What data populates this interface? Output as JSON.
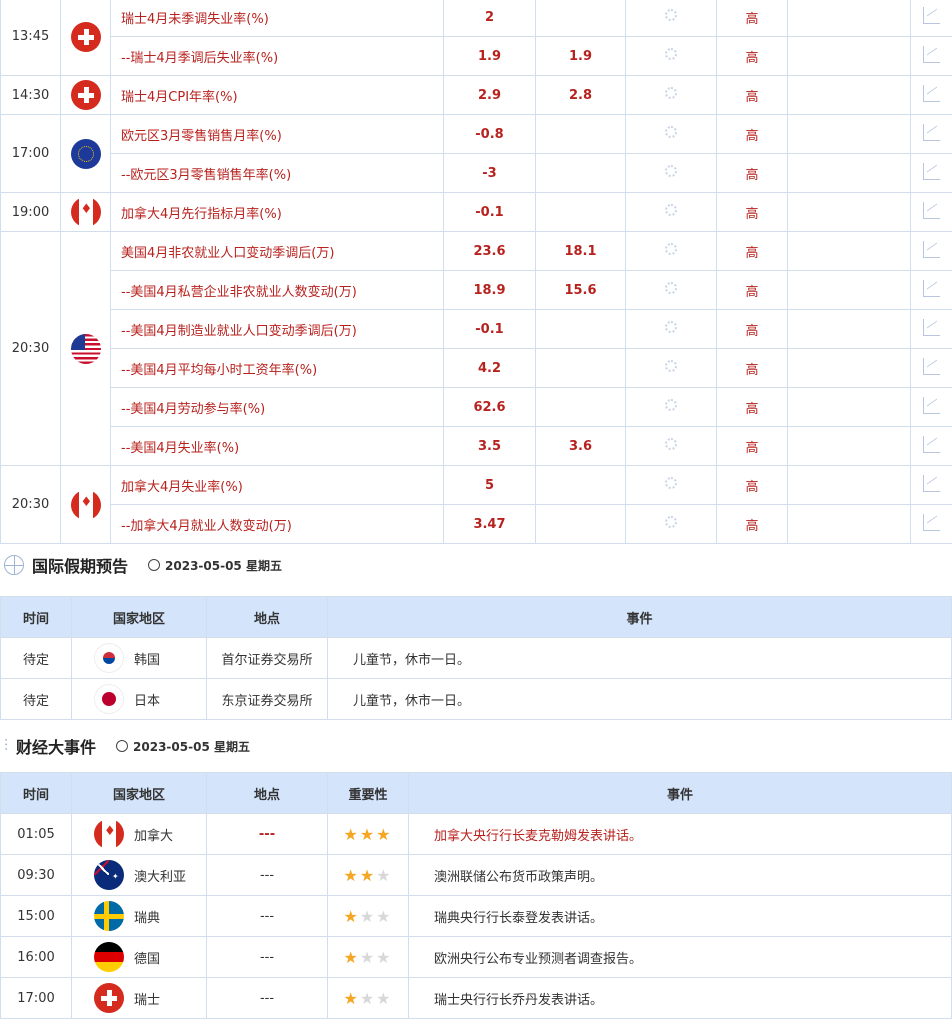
{
  "econ_groups": [
    {
      "time": "13:45",
      "flag": "switzerland",
      "items": [
        {
          "name": "瑞士4月未季调失业率(%)",
          "actual": "2",
          "forecast": "",
          "importance": "高"
        },
        {
          "name": "--瑞士4月季调后失业率(%)",
          "actual": "1.9",
          "forecast": "1.9",
          "importance": "高"
        }
      ]
    },
    {
      "time": "14:30",
      "flag": "switzerland",
      "items": [
        {
          "name": "瑞士4月CPI年率(%)",
          "actual": "2.9",
          "forecast": "2.8",
          "importance": "高"
        }
      ]
    },
    {
      "time": "17:00",
      "flag": "eu",
      "items": [
        {
          "name": "欧元区3月零售销售月率(%)",
          "actual": "-0.8",
          "forecast": "",
          "importance": "高"
        },
        {
          "name": "--欧元区3月零售销售年率(%)",
          "actual": "-3",
          "forecast": "",
          "importance": "高"
        }
      ]
    },
    {
      "time": "19:00",
      "flag": "canada",
      "items": [
        {
          "name": "加拿大4月先行指标月率(%)",
          "actual": "-0.1",
          "forecast": "",
          "importance": "高"
        }
      ]
    },
    {
      "time": "20:30",
      "flag": "usa",
      "items": [
        {
          "name": "美国4月非农就业人口变动季调后(万)",
          "actual": "23.6",
          "forecast": "18.1",
          "importance": "高"
        },
        {
          "name": "--美国4月私营企业非农就业人数变动(万)",
          "actual": "18.9",
          "forecast": "15.6",
          "importance": "高"
        },
        {
          "name": "--美国4月制造业就业人口变动季调后(万)",
          "actual": "-0.1",
          "forecast": "",
          "importance": "高"
        },
        {
          "name": "--美国4月平均每小时工资年率(%)",
          "actual": "4.2",
          "forecast": "",
          "importance": "高"
        },
        {
          "name": "--美国4月劳动参与率(%)",
          "actual": "62.6",
          "forecast": "",
          "importance": "高"
        },
        {
          "name": "--美国4月失业率(%)",
          "actual": "3.5",
          "forecast": "3.6",
          "importance": "高"
        }
      ]
    },
    {
      "time": "20:30",
      "flag": "canada",
      "items": [
        {
          "name": "加拿大4月失业率(%)",
          "actual": "5",
          "forecast": "",
          "importance": "高"
        },
        {
          "name": "--加拿大4月就业人数变动(万)",
          "actual": "3.47",
          "forecast": "",
          "importance": "高"
        }
      ]
    }
  ],
  "holiday": {
    "title": "国际假期预告",
    "date": "2023-05-05 星期五",
    "headers": [
      "时间",
      "国家地区",
      "地点",
      "事件"
    ],
    "rows": [
      {
        "time": "待定",
        "flag": "korea",
        "country": "韩国",
        "place": "首尔证券交易所",
        "event": "儿童节，休市一日。"
      },
      {
        "time": "待定",
        "flag": "japan",
        "country": "日本",
        "place": "东京证券交易所",
        "event": "儿童节，休市一日。"
      }
    ]
  },
  "events": {
    "title": "财经大事件",
    "date": "2023-05-05 星期五",
    "headers": [
      "时间",
      "国家地区",
      "地点",
      "重要性",
      "事件"
    ],
    "rows": [
      {
        "time": "01:05",
        "flag": "canada",
        "country": "加拿大",
        "place": "---",
        "stars": 3,
        "event": "加拿大央行行长麦克勒姆发表讲话。",
        "highlight": true
      },
      {
        "time": "09:30",
        "flag": "australia",
        "country": "澳大利亚",
        "place": "---",
        "stars": 2,
        "event": "澳洲联储公布货币政策声明。"
      },
      {
        "time": "15:00",
        "flag": "sweden",
        "country": "瑞典",
        "place": "---",
        "stars": 1,
        "event": "瑞典央行行长泰登发表讲话。"
      },
      {
        "time": "16:00",
        "flag": "germany",
        "country": "德国",
        "place": "---",
        "stars": 1,
        "event": "欧洲央行公布专业预测者调查报告。"
      },
      {
        "time": "17:00",
        "flag": "switzerland",
        "country": "瑞士",
        "place": "---",
        "stars": 1,
        "event": "瑞士央行行长乔丹发表讲话。"
      }
    ]
  },
  "colors": {
    "accent_red": "#b8221e",
    "header_bg": "#d4e4fb",
    "star": "#f5a623"
  }
}
